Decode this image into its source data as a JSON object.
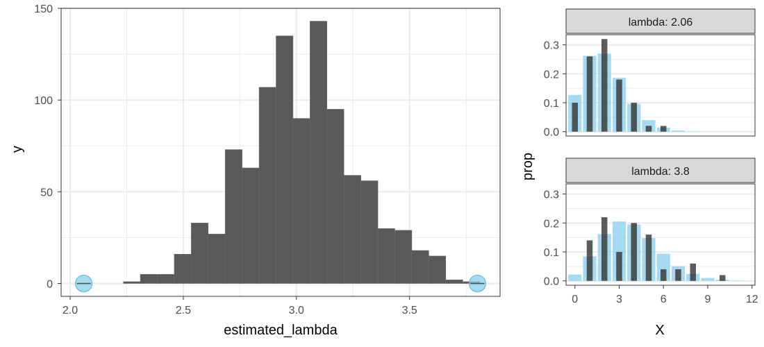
{
  "colors": {
    "bar": "#595959",
    "highlight": "#87CEEB",
    "grid": "#EBEBEB",
    "strip_bg": "#D9D9D9",
    "axis_text": "#4D4D4D",
    "frame": "#333333"
  },
  "chart_data": [
    {
      "type": "bar",
      "ylabel": "y",
      "xlabel": "estimated_lambda",
      "xlim": [
        1.96,
        3.9
      ],
      "ylim": [
        -7,
        150
      ],
      "x_ticks": [
        2.0,
        2.5,
        3.0,
        3.5
      ],
      "x_tick_labels": [
        "2.0",
        "2.5",
        "3.0",
        "3.5"
      ],
      "y_ticks": [
        0,
        50,
        100,
        150
      ],
      "y_tick_labels": [
        "0",
        "50",
        "100",
        "150"
      ],
      "bin_width": 0.075,
      "bin_starts": [
        2.235,
        2.31,
        2.385,
        2.46,
        2.535,
        2.61,
        2.685,
        2.76,
        2.835,
        2.91,
        2.985,
        3.06,
        3.135,
        3.21,
        3.285,
        3.36,
        3.435,
        3.51,
        3.585,
        3.66,
        3.735
      ],
      "counts": [
        1,
        5,
        5,
        16,
        33,
        27,
        73,
        63,
        107,
        135,
        90,
        143,
        95,
        59,
        56,
        30,
        29,
        18,
        15,
        2,
        1
      ],
      "highlight_points": [
        {
          "x": 2.06,
          "y": 0
        },
        {
          "x": 3.8,
          "y": 0
        }
      ],
      "grid": true
    },
    {
      "type": "bar",
      "facet_label": "lambda: 2.06",
      "ylabel": "prop",
      "xlabel": "X",
      "xlim": [
        -0.6,
        12.2
      ],
      "ylim": [
        -0.015,
        0.335
      ],
      "x_ticks": [
        0,
        3,
        6,
        9,
        12
      ],
      "x_tick_labels": [
        "0",
        "3",
        "6",
        "9",
        "12"
      ],
      "y_ticks": [
        0.0,
        0.1,
        0.2,
        0.3
      ],
      "y_tick_labels": [
        "0.0",
        "0.1",
        "0.2",
        "0.3"
      ],
      "series": [
        {
          "x": [
            0,
            1,
            2,
            3,
            4,
            5,
            6,
            7,
            8,
            9,
            10,
            11,
            12
          ],
          "values": [
            0.127,
            0.262,
            0.27,
            0.186,
            0.096,
            0.04,
            0.014,
            0.004,
            0.001,
            0.0,
            0.0,
            0.0,
            0.0
          ]
        },
        {
          "x": [
            0,
            1,
            2,
            3,
            4,
            5,
            6
          ],
          "values": [
            0.1,
            0.26,
            0.32,
            0.18,
            0.1,
            0.02,
            0.02
          ]
        }
      ],
      "grid": true
    },
    {
      "type": "bar",
      "facet_label": "lambda: 3.8",
      "ylabel": "prop",
      "xlabel": "X",
      "xlim": [
        -0.6,
        12.2
      ],
      "ylim": [
        -0.015,
        0.335
      ],
      "x_ticks": [
        0,
        3,
        6,
        9,
        12
      ],
      "x_tick_labels": [
        "0",
        "3",
        "6",
        "9",
        "12"
      ],
      "y_ticks": [
        0.0,
        0.1,
        0.2,
        0.3
      ],
      "y_tick_labels": [
        "0.0",
        "0.1",
        "0.2",
        "0.3"
      ],
      "series": [
        {
          "x": [
            0,
            1,
            2,
            3,
            4,
            5,
            6,
            7,
            8,
            9,
            10,
            11,
            12
          ],
          "values": [
            0.022,
            0.085,
            0.162,
            0.205,
            0.195,
            0.148,
            0.094,
            0.051,
            0.024,
            0.01,
            0.004,
            0.001,
            0.0
          ]
        },
        {
          "x": [
            1,
            2,
            3,
            4,
            5,
            6,
            7,
            8,
            10
          ],
          "values": [
            0.14,
            0.22,
            0.1,
            0.2,
            0.16,
            0.04,
            0.04,
            0.06,
            0.02
          ]
        }
      ],
      "grid": true
    }
  ]
}
